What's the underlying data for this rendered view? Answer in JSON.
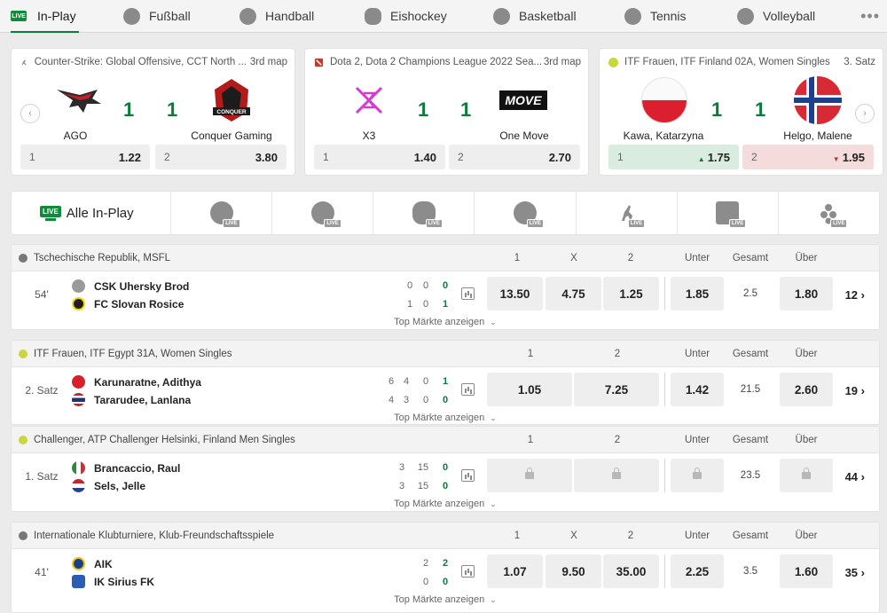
{
  "tabs": {
    "live_badge": "LIVE",
    "items": [
      "In-Play",
      "Fußball",
      "Handball",
      "Eishockey",
      "Basketball",
      "Tennis",
      "Volleyball"
    ],
    "more": "•••"
  },
  "featured": [
    {
      "competition": "Counter-Strike: Global Offensive, CCT North ...",
      "period": "3rd map",
      "home": {
        "name": "AGO",
        "score": "1"
      },
      "away": {
        "name": "Conquer Gaming",
        "score": "1"
      },
      "odds": [
        {
          "label": "1",
          "value": "1.22"
        },
        {
          "label": "2",
          "value": "3.80"
        }
      ]
    },
    {
      "competition": "Dota 2, Dota 2 Champions League 2022 Sea...",
      "period": "3rd map",
      "home": {
        "name": "X3",
        "score": "1"
      },
      "away": {
        "name": "One Move",
        "score": "1"
      },
      "odds": [
        {
          "label": "1",
          "value": "1.40"
        },
        {
          "label": "2",
          "value": "2.70"
        }
      ]
    },
    {
      "competition": "ITF Frauen, ITF Finland 02A, Women Singles",
      "period": "3. Satz",
      "home": {
        "name": "Kawa, Katarzyna",
        "score": "1"
      },
      "away": {
        "name": "Helgo, Malene",
        "score": "1"
      },
      "odds": [
        {
          "label": "1",
          "value": "1.75",
          "trend": "up"
        },
        {
          "label": "2",
          "value": "1.95",
          "trend": "down"
        }
      ]
    }
  ],
  "featured_logo_text": {
    "one_move": "MOVE",
    "conquer": "CONQUER"
  },
  "filter": {
    "all_label": "Alle In-Play",
    "live_badge": "LIVE",
    "sport_badge": "LIVE"
  },
  "colors": {
    "accent": "#128a3b",
    "score_green": "#0d7a3c",
    "up_bg": "#d9ecdf",
    "down_bg": "#f4dcdc"
  },
  "sections": [
    {
      "title": "Tschechische Republik, MSFL",
      "cols": [
        "1",
        "X",
        "2",
        "Unter",
        "Gesamt",
        "Über"
      ],
      "time": "54'",
      "home": {
        "name": "CSK Uhersky Brod",
        "scores": [
          "0",
          "0",
          "0"
        ]
      },
      "away": {
        "name": "FC Slovan Rosice",
        "scores": [
          "1",
          "0",
          "1"
        ]
      },
      "odds": [
        "13.50",
        "4.75",
        "1.25"
      ],
      "under": "1.85",
      "total": "2.5",
      "over": "1.80",
      "more": "12",
      "top_markets": "Top Märkte anzeigen"
    },
    {
      "title": "ITF Frauen, ITF Egypt 31A, Women Singles",
      "cols": [
        "1",
        "2",
        "Unter",
        "Gesamt",
        "Über"
      ],
      "time": "2. Satz",
      "home": {
        "name": "Karunaratne, Adithya",
        "scores": [
          "6",
          "4",
          "0",
          "1"
        ]
      },
      "away": {
        "name": "Tararudee, Lanlana",
        "scores": [
          "4",
          "3",
          "0",
          "0"
        ]
      },
      "odds": [
        "1.05",
        "7.25"
      ],
      "under": "1.42",
      "total": "21.5",
      "over": "2.60",
      "more": "19",
      "top_markets": "Top Märkte anzeigen"
    },
    {
      "title": "Challenger, ATP Challenger Helsinki, Finland Men Singles",
      "cols": [
        "1",
        "2",
        "Unter",
        "Gesamt",
        "Über"
      ],
      "time": "1. Satz",
      "home": {
        "name": "Brancaccio, Raul",
        "scores": [
          "3",
          "15",
          "0"
        ]
      },
      "away": {
        "name": "Sels, Jelle",
        "scores": [
          "3",
          "15",
          "0"
        ]
      },
      "total": "23.5",
      "more": "44",
      "top_markets": "Top Märkte anzeigen"
    },
    {
      "title": "Internationale Klubturniere, Klub-Freundschaftsspiele",
      "cols": [
        "1",
        "X",
        "2",
        "Unter",
        "Gesamt",
        "Über"
      ],
      "time": "41'",
      "home": {
        "name": "AIK",
        "scores": [
          "2",
          "2"
        ]
      },
      "away": {
        "name": "IK Sirius FK",
        "scores": [
          "0",
          "0"
        ]
      },
      "odds": [
        "1.07",
        "9.50",
        "35.00"
      ],
      "under": "2.25",
      "total": "3.5",
      "over": "1.60",
      "more": "35",
      "top_markets": "Top Märkte anzeigen"
    }
  ]
}
